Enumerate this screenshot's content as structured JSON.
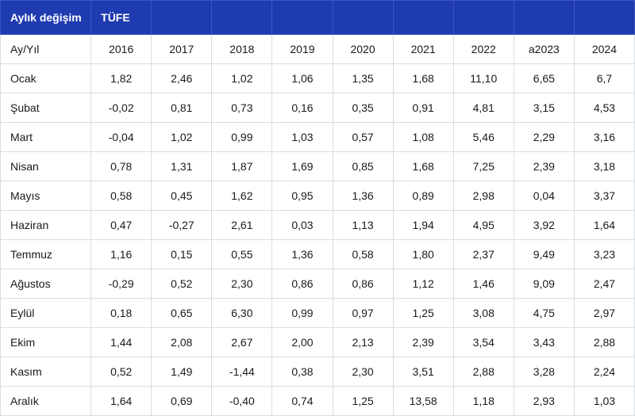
{
  "header": {
    "title": "Aylık değişim",
    "subtitle": "TÜFE",
    "blank_count": 8
  },
  "columns_label": "Ay/Yıl",
  "years": [
    "2016",
    "2017",
    "2018",
    "2019",
    "2020",
    "2021",
    "2022",
    "a2023",
    "2024"
  ],
  "rows": [
    {
      "month": "Ocak",
      "values": [
        "1,82",
        "2,46",
        "1,02",
        "1,06",
        "1,35",
        "1,68",
        "11,10",
        "6,65",
        "6,7"
      ]
    },
    {
      "month": "Şubat",
      "values": [
        "-0,02",
        "0,81",
        "0,73",
        "0,16",
        "0,35",
        "0,91",
        "4,81",
        "3,15",
        "4,53"
      ]
    },
    {
      "month": "Mart",
      "values": [
        "-0,04",
        "1,02",
        "0,99",
        "1,03",
        "0,57",
        "1,08",
        "5,46",
        "2,29",
        "3,16"
      ]
    },
    {
      "month": "Nisan",
      "values": [
        "0,78",
        "1,31",
        "1,87",
        "1,69",
        "0,85",
        "1,68",
        "7,25",
        "2,39",
        "3,18"
      ]
    },
    {
      "month": "Mayıs",
      "values": [
        "0,58",
        "0,45",
        "1,62",
        "0,95",
        "1,36",
        "0,89",
        "2,98",
        "0,04",
        "3,37"
      ]
    },
    {
      "month": "Haziran",
      "values": [
        "0,47",
        "-0,27",
        "2,61",
        "0,03",
        "1,13",
        "1,94",
        "4,95",
        "3,92",
        "1,64"
      ]
    },
    {
      "month": "Temmuz",
      "values": [
        "1,16",
        "0,15",
        "0,55",
        "1,36",
        "0,58",
        "1,80",
        "2,37",
        "9,49",
        "3,23"
      ]
    },
    {
      "month": "Ağustos",
      "values": [
        "-0,29",
        "0,52",
        "2,30",
        "0,86",
        "0,86",
        "1,12",
        "1,46",
        "9,09",
        "2,47"
      ]
    },
    {
      "month": "Eylül",
      "values": [
        "0,18",
        "0,65",
        "6,30",
        "0,99",
        "0,97",
        "1,25",
        "3,08",
        "4,75",
        "2,97"
      ]
    },
    {
      "month": "Ekim",
      "values": [
        "1,44",
        "2,08",
        "2,67",
        "2,00",
        "2,13",
        "2,39",
        "3,54",
        "3,43",
        "2,88"
      ]
    },
    {
      "month": "Kasım",
      "values": [
        "0,52",
        "1,49",
        "-1,44",
        "0,38",
        "2,30",
        "3,51",
        "2,88",
        "3,28",
        "2,24"
      ]
    },
    {
      "month": "Aralık",
      "values": [
        "1,64",
        "0,69",
        "-0,40",
        "0,74",
        "1,25",
        "13,58",
        "1,18",
        "2,93",
        "1,03"
      ]
    }
  ],
  "colors": {
    "header_bg": "#1f3bb0",
    "border": "#d9dce3"
  }
}
